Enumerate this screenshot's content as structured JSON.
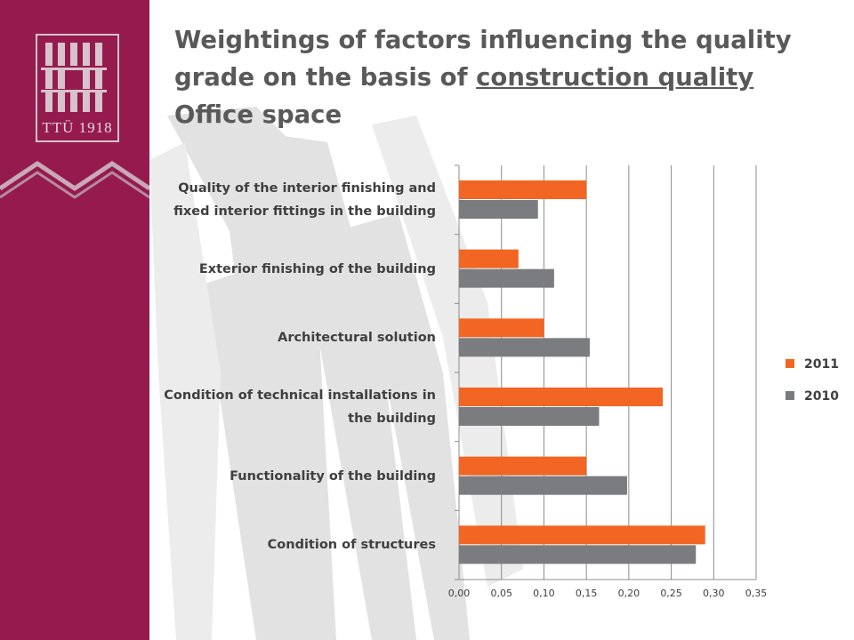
{
  "slide": {
    "title": {
      "line1": "Weightings of factors influencing the quality",
      "line2_prefix": "grade on the basis of ",
      "line2_underlined": "construction quality",
      "line3": "Office space"
    },
    "logo_text": "TTÜ 1918"
  },
  "colors": {
    "sidebar": "#951b4f",
    "series_2011": "#f26522",
    "series_2010": "#7b7c80"
  },
  "chart_data": {
    "type": "bar",
    "orientation": "horizontal",
    "categories": [
      "Quality of the interior finishing and fixed interior fittings in the building",
      "Exterior finishing of the building",
      "Architectural solution",
      "Condition of technical installations in the building",
      "Functionality of the building",
      "Condition of structures"
    ],
    "category_lines": [
      [
        "Quality of the interior finishing and",
        "fixed interior fittings in the building"
      ],
      [
        "Exterior finishing of the building"
      ],
      [
        "Architectural solution"
      ],
      [
        "Condition of technical installations in",
        "the building"
      ],
      [
        "Functionality of the building"
      ],
      [
        "Condition of structures"
      ]
    ],
    "series": [
      {
        "name": "2011",
        "color": "#f26522",
        "values": [
          0.15,
          0.07,
          0.1,
          0.24,
          0.15,
          0.29
        ]
      },
      {
        "name": "2010",
        "color": "#7b7c80",
        "values": [
          0.093,
          0.112,
          0.154,
          0.165,
          0.198,
          0.279
        ]
      }
    ],
    "xlim": [
      0,
      0.35
    ],
    "x_ticks": [
      "0,00",
      "0,05",
      "0,10",
      "0,15",
      "0,20",
      "0,25",
      "0,30",
      "0,35"
    ],
    "grid": true,
    "legend_position": "right"
  }
}
